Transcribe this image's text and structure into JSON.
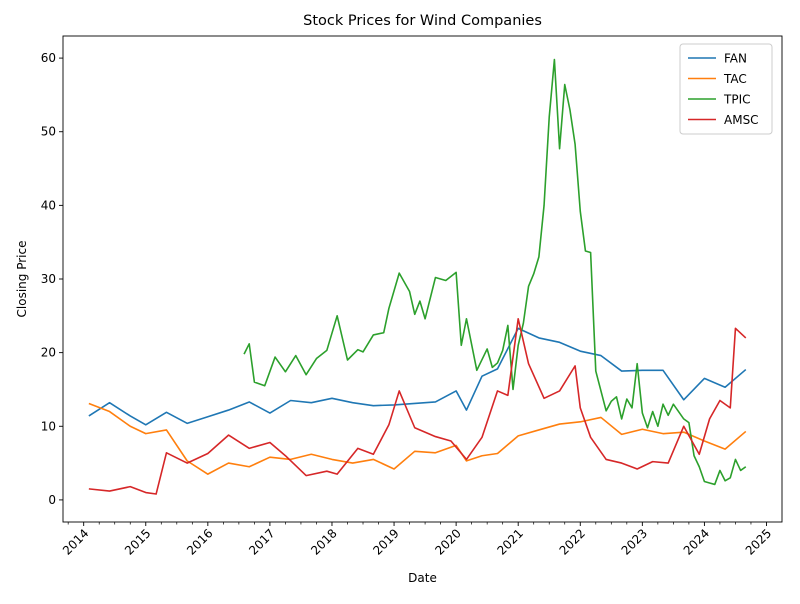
{
  "chart_data": {
    "type": "line",
    "title": "Stock Prices for Wind Companies",
    "xlabel": "Date",
    "ylabel": "Closing Price",
    "xlim": [
      "2013-09-01",
      "2025-04-01"
    ],
    "ylim": [
      -3,
      63
    ],
    "x_ticks": [
      "2014",
      "2015",
      "2016",
      "2017",
      "2018",
      "2019",
      "2020",
      "2021",
      "2022",
      "2023",
      "2024",
      "2025"
    ],
    "y_ticks": [
      0,
      10,
      20,
      30,
      40,
      50,
      60
    ],
    "grid": false,
    "legend_position": "top-right",
    "series": [
      {
        "name": "FAN",
        "color": "#1f77b4",
        "x": [
          "2014-02",
          "2014-06",
          "2014-10",
          "2015-01",
          "2015-05",
          "2015-09",
          "2016-01",
          "2016-05",
          "2016-09",
          "2017-01",
          "2017-05",
          "2017-09",
          "2018-01",
          "2018-05",
          "2018-09",
          "2019-01",
          "2019-05",
          "2019-09",
          "2020-01",
          "2020-03",
          "2020-06",
          "2020-09",
          "2021-01",
          "2021-05",
          "2021-09",
          "2022-01",
          "2022-05",
          "2022-09",
          "2023-01",
          "2023-05",
          "2023-09",
          "2024-01",
          "2024-05",
          "2024-09"
        ],
        "values": [
          11.4,
          13.2,
          11.4,
          10.2,
          11.9,
          10.4,
          11.3,
          12.2,
          13.3,
          11.8,
          13.5,
          13.2,
          13.8,
          13.2,
          12.8,
          12.9,
          13.1,
          13.3,
          14.8,
          12.2,
          16.8,
          17.8,
          23.3,
          22.0,
          21.4,
          20.2,
          19.6,
          17.5,
          17.6,
          17.6,
          13.6,
          16.5,
          15.3,
          17.7
        ]
      },
      {
        "name": "TAC",
        "color": "#ff7f0e",
        "x": [
          "2014-02",
          "2014-06",
          "2014-10",
          "2015-01",
          "2015-05",
          "2015-09",
          "2016-01",
          "2016-05",
          "2016-09",
          "2017-01",
          "2017-05",
          "2017-09",
          "2018-01",
          "2018-05",
          "2018-09",
          "2019-01",
          "2019-05",
          "2019-09",
          "2020-01",
          "2020-03",
          "2020-06",
          "2020-09",
          "2021-01",
          "2021-05",
          "2021-09",
          "2022-01",
          "2022-05",
          "2022-09",
          "2023-01",
          "2023-05",
          "2023-09",
          "2024-01",
          "2024-05",
          "2024-09"
        ],
        "values": [
          13.1,
          12.0,
          10.0,
          9.0,
          9.5,
          5.3,
          3.5,
          5.0,
          4.5,
          5.8,
          5.5,
          6.2,
          5.5,
          5.0,
          5.5,
          4.2,
          6.6,
          6.4,
          7.4,
          5.3,
          6.0,
          6.3,
          8.7,
          9.5,
          10.3,
          10.6,
          11.2,
          8.9,
          9.6,
          9.0,
          9.2,
          8.0,
          6.9,
          9.3
        ]
      },
      {
        "name": "TPIC",
        "color": "#2ca02c",
        "x": [
          "2016-08",
          "2016-09",
          "2016-10",
          "2016-12",
          "2017-02",
          "2017-04",
          "2017-06",
          "2017-08",
          "2017-10",
          "2017-12",
          "2018-02",
          "2018-04",
          "2018-06",
          "2018-07",
          "2018-09",
          "2018-11",
          "2018-12",
          "2019-02",
          "2019-04",
          "2019-05",
          "2019-06",
          "2019-07",
          "2019-09",
          "2019-11",
          "2020-01",
          "2020-02",
          "2020-03",
          "2020-05",
          "2020-07",
          "2020-08",
          "2020-09",
          "2020-10",
          "2020-11",
          "2020-12",
          "2021-01",
          "2021-02",
          "2021-03",
          "2021-04",
          "2021-05",
          "2021-06",
          "2021-07",
          "2021-08",
          "2021-09",
          "2021-10",
          "2021-11",
          "2021-12",
          "2022-01",
          "2022-02",
          "2022-03",
          "2022-04",
          "2022-06",
          "2022-07",
          "2022-08",
          "2022-09",
          "2022-10",
          "2022-11",
          "2022-12",
          "2023-01",
          "2023-02",
          "2023-03",
          "2023-04",
          "2023-05",
          "2023-06",
          "2023-07",
          "2023-08",
          "2023-09",
          "2023-10",
          "2023-11",
          "2023-12",
          "2024-01",
          "2024-02",
          "2024-03",
          "2024-04",
          "2024-05",
          "2024-06",
          "2024-07",
          "2024-08",
          "2024-09"
        ],
        "values": [
          19.8,
          21.2,
          16.0,
          15.5,
          19.4,
          17.4,
          19.6,
          17.0,
          19.2,
          20.3,
          25.0,
          19.0,
          20.4,
          20.1,
          22.4,
          22.7,
          26.0,
          30.8,
          28.3,
          25.2,
          27.0,
          24.6,
          30.2,
          29.8,
          30.9,
          21.0,
          24.6,
          17.6,
          20.5,
          18.0,
          18.6,
          20.3,
          23.7,
          15.0,
          21.0,
          24.0,
          29.0,
          30.7,
          33.0,
          40.0,
          52.0,
          59.8,
          47.7,
          56.4,
          53.0,
          48.3,
          39.2,
          33.8,
          33.6,
          17.5,
          12.1,
          13.4,
          14.0,
          11.0,
          13.7,
          12.5,
          18.5,
          11.8,
          9.8,
          12.0,
          10.0,
          13.0,
          11.5,
          13.0,
          12.0,
          11.0,
          10.5,
          6.0,
          4.5,
          2.5,
          2.3,
          2.1,
          4.0,
          2.6,
          3.0,
          5.5,
          4.0,
          4.5
        ]
      },
      {
        "name": "AMSC",
        "color": "#d62728",
        "x": [
          "2014-02",
          "2014-06",
          "2014-10",
          "2015-01",
          "2015-03",
          "2015-05",
          "2015-09",
          "2016-01",
          "2016-05",
          "2016-09",
          "2017-01",
          "2017-04",
          "2017-08",
          "2017-12",
          "2018-02",
          "2018-06",
          "2018-09",
          "2018-12",
          "2019-02",
          "2019-05",
          "2019-09",
          "2019-12",
          "2020-03",
          "2020-06",
          "2020-09",
          "2020-11",
          "2021-01",
          "2021-03",
          "2021-06",
          "2021-09",
          "2021-12",
          "2022-01",
          "2022-03",
          "2022-06",
          "2022-09",
          "2022-12",
          "2023-03",
          "2023-06",
          "2023-09",
          "2023-12",
          "2024-02",
          "2024-04",
          "2024-06",
          "2024-07",
          "2024-09"
        ],
        "values": [
          1.5,
          1.2,
          1.8,
          1.0,
          0.8,
          6.4,
          5.0,
          6.3,
          8.8,
          7.0,
          7.8,
          6.0,
          3.3,
          3.9,
          3.5,
          7.0,
          6.2,
          10.2,
          14.8,
          9.8,
          8.6,
          8.0,
          5.5,
          8.5,
          14.8,
          14.2,
          24.6,
          18.5,
          13.8,
          14.8,
          18.2,
          12.5,
          8.5,
          5.5,
          5.0,
          4.2,
          5.2,
          5.0,
          10.0,
          6.2,
          11.0,
          13.5,
          12.5,
          23.3,
          22.0
        ]
      }
    ]
  }
}
